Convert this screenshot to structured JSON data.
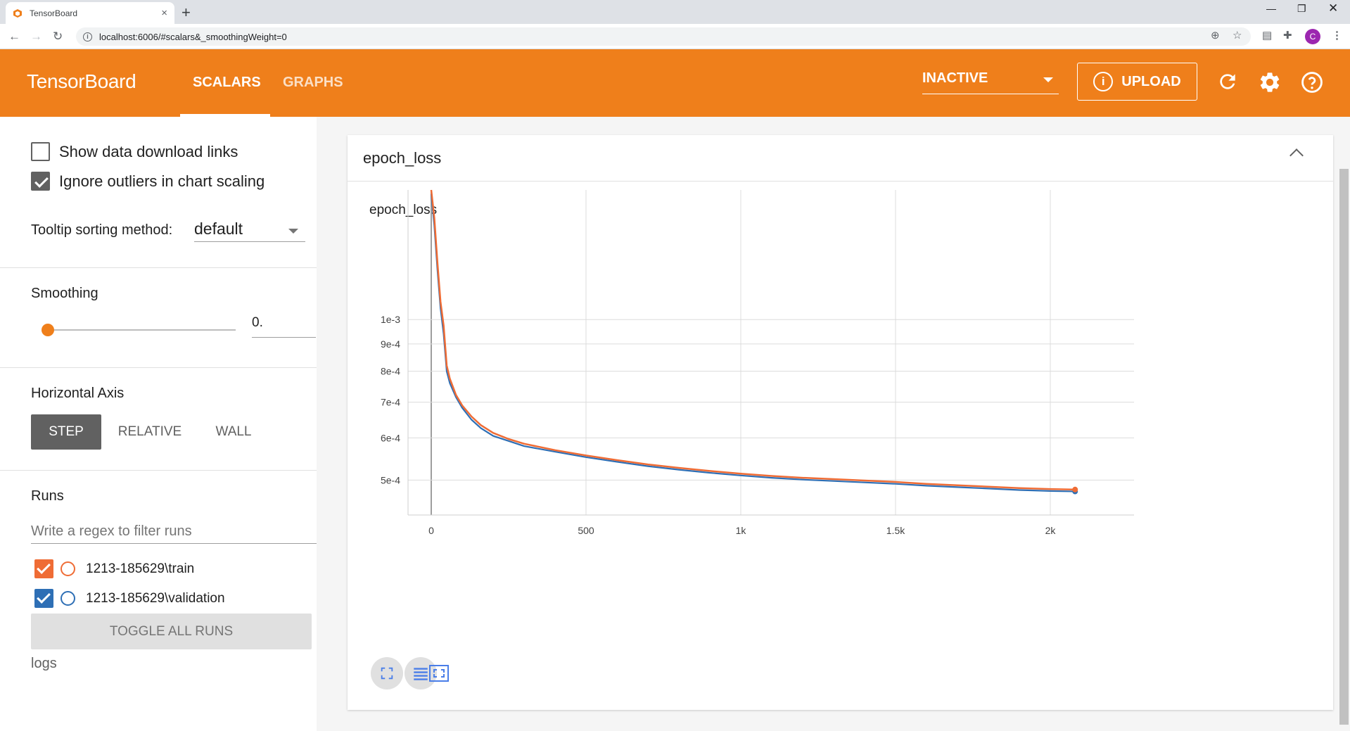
{
  "browser": {
    "tab_title": "TensorBoard",
    "tab_close": "×",
    "new_tab": "+",
    "url": "localhost:6006/#scalars&_smoothingWeight=0",
    "profile_initial": "C"
  },
  "header": {
    "brand": "TensorBoard",
    "tabs": [
      {
        "label": "SCALARS",
        "active": true
      },
      {
        "label": "GRAPHS",
        "active": false
      }
    ],
    "run_select": "INACTIVE",
    "upload_label": "UPLOAD",
    "colors": {
      "background": "#ef7f1b"
    }
  },
  "sidebar": {
    "show_download_links": {
      "label": "Show data download links",
      "checked": false
    },
    "ignore_outliers": {
      "label": "Ignore outliers in chart scaling",
      "checked": true
    },
    "tooltip_sorting_label": "Tooltip sorting method:",
    "tooltip_sorting_value": "default",
    "smoothing_label": "Smoothing",
    "smoothing_value": "0.",
    "smoothing_level": 0,
    "horizontal_axis_label": "Horizontal Axis",
    "axis_options": [
      {
        "label": "STEP",
        "selected": true
      },
      {
        "label": "RELATIVE",
        "selected": false
      },
      {
        "label": "WALL",
        "selected": false
      }
    ],
    "runs_label": "Runs",
    "runs_filter_placeholder": "Write a regex to filter runs",
    "runs": [
      {
        "name": "1213-185629\\train",
        "checked": true,
        "color": "#ef6c35"
      },
      {
        "name": "1213-185629\\validation",
        "checked": true,
        "color": "#2e6fb5"
      }
    ],
    "toggle_all_label": "TOGGLE ALL RUNS",
    "logs_label": "logs"
  },
  "card": {
    "title": "epoch_loss",
    "chart_title": "epoch_loss"
  },
  "chart_data": {
    "type": "line",
    "title": "epoch_loss",
    "x_ticks": [
      "0",
      "500",
      "1k",
      "1.5k",
      "2k"
    ],
    "y_ticks": [
      "1e-3",
      "9e-4",
      "8e-4",
      "7e-4",
      "6e-4",
      "5e-4"
    ],
    "y_scale": "log",
    "grid": true,
    "series": [
      {
        "name": "1213-185629\\train",
        "color": "#ef6c35",
        "x": [
          0,
          10,
          20,
          30,
          40,
          50,
          60,
          80,
          100,
          130,
          160,
          200,
          250,
          300,
          400,
          500,
          600,
          700,
          800,
          900,
          1000,
          1100,
          1200,
          1300,
          1400,
          1500,
          1600,
          1700,
          1800,
          1900,
          2000,
          2080
        ],
        "y": [
          0.00175,
          0.00155,
          0.00128,
          0.00108,
          0.000975,
          0.00082,
          0.000775,
          0.000722,
          0.00069,
          0.000658,
          0.000634,
          0.000613,
          0.000597,
          0.000585,
          0.000569,
          0.000556,
          0.000545,
          0.000535,
          0.000527,
          0.00052,
          0.000514,
          0.000509,
          0.000505,
          0.000502,
          0.000499,
          0.000496,
          0.000492,
          0.000489,
          0.000486,
          0.000483,
          0.000481,
          0.00048
        ]
      },
      {
        "name": "1213-185629\\validation",
        "color": "#2e6fb5",
        "x": [
          0,
          10,
          20,
          30,
          40,
          50,
          60,
          80,
          100,
          130,
          160,
          200,
          250,
          300,
          400,
          500,
          600,
          700,
          800,
          900,
          1000,
          1100,
          1200,
          1300,
          1400,
          1500,
          1600,
          1700,
          1800,
          1900,
          2000,
          2080
        ],
        "y": [
          0.00172,
          0.0015,
          0.00124,
          0.00105,
          0.00094,
          0.0008,
          0.00076,
          0.000715,
          0.000683,
          0.000649,
          0.000626,
          0.000605,
          0.000592,
          0.000579,
          0.000565,
          0.000552,
          0.000541,
          0.000531,
          0.000523,
          0.000516,
          0.00051,
          0.000505,
          0.000501,
          0.000498,
          0.000495,
          0.000492,
          0.000488,
          0.000485,
          0.000482,
          0.000479,
          0.000477,
          0.000476
        ]
      }
    ]
  }
}
